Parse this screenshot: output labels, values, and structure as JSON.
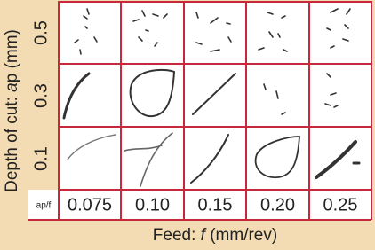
{
  "figure": {
    "y_label": {
      "prefix": "Depth of cut: ",
      "italic": "a",
      "suffix": "p (mm)"
    },
    "rows": [
      "0.5",
      "0.3",
      "0.1"
    ],
    "corner": "ap/f",
    "columns": [
      "0.075",
      "0.10",
      "0.15",
      "0.20",
      "0.25"
    ],
    "x_label": {
      "prefix": "Feed: ",
      "italic": "f",
      "suffix": " (mm/rev)"
    }
  }
}
